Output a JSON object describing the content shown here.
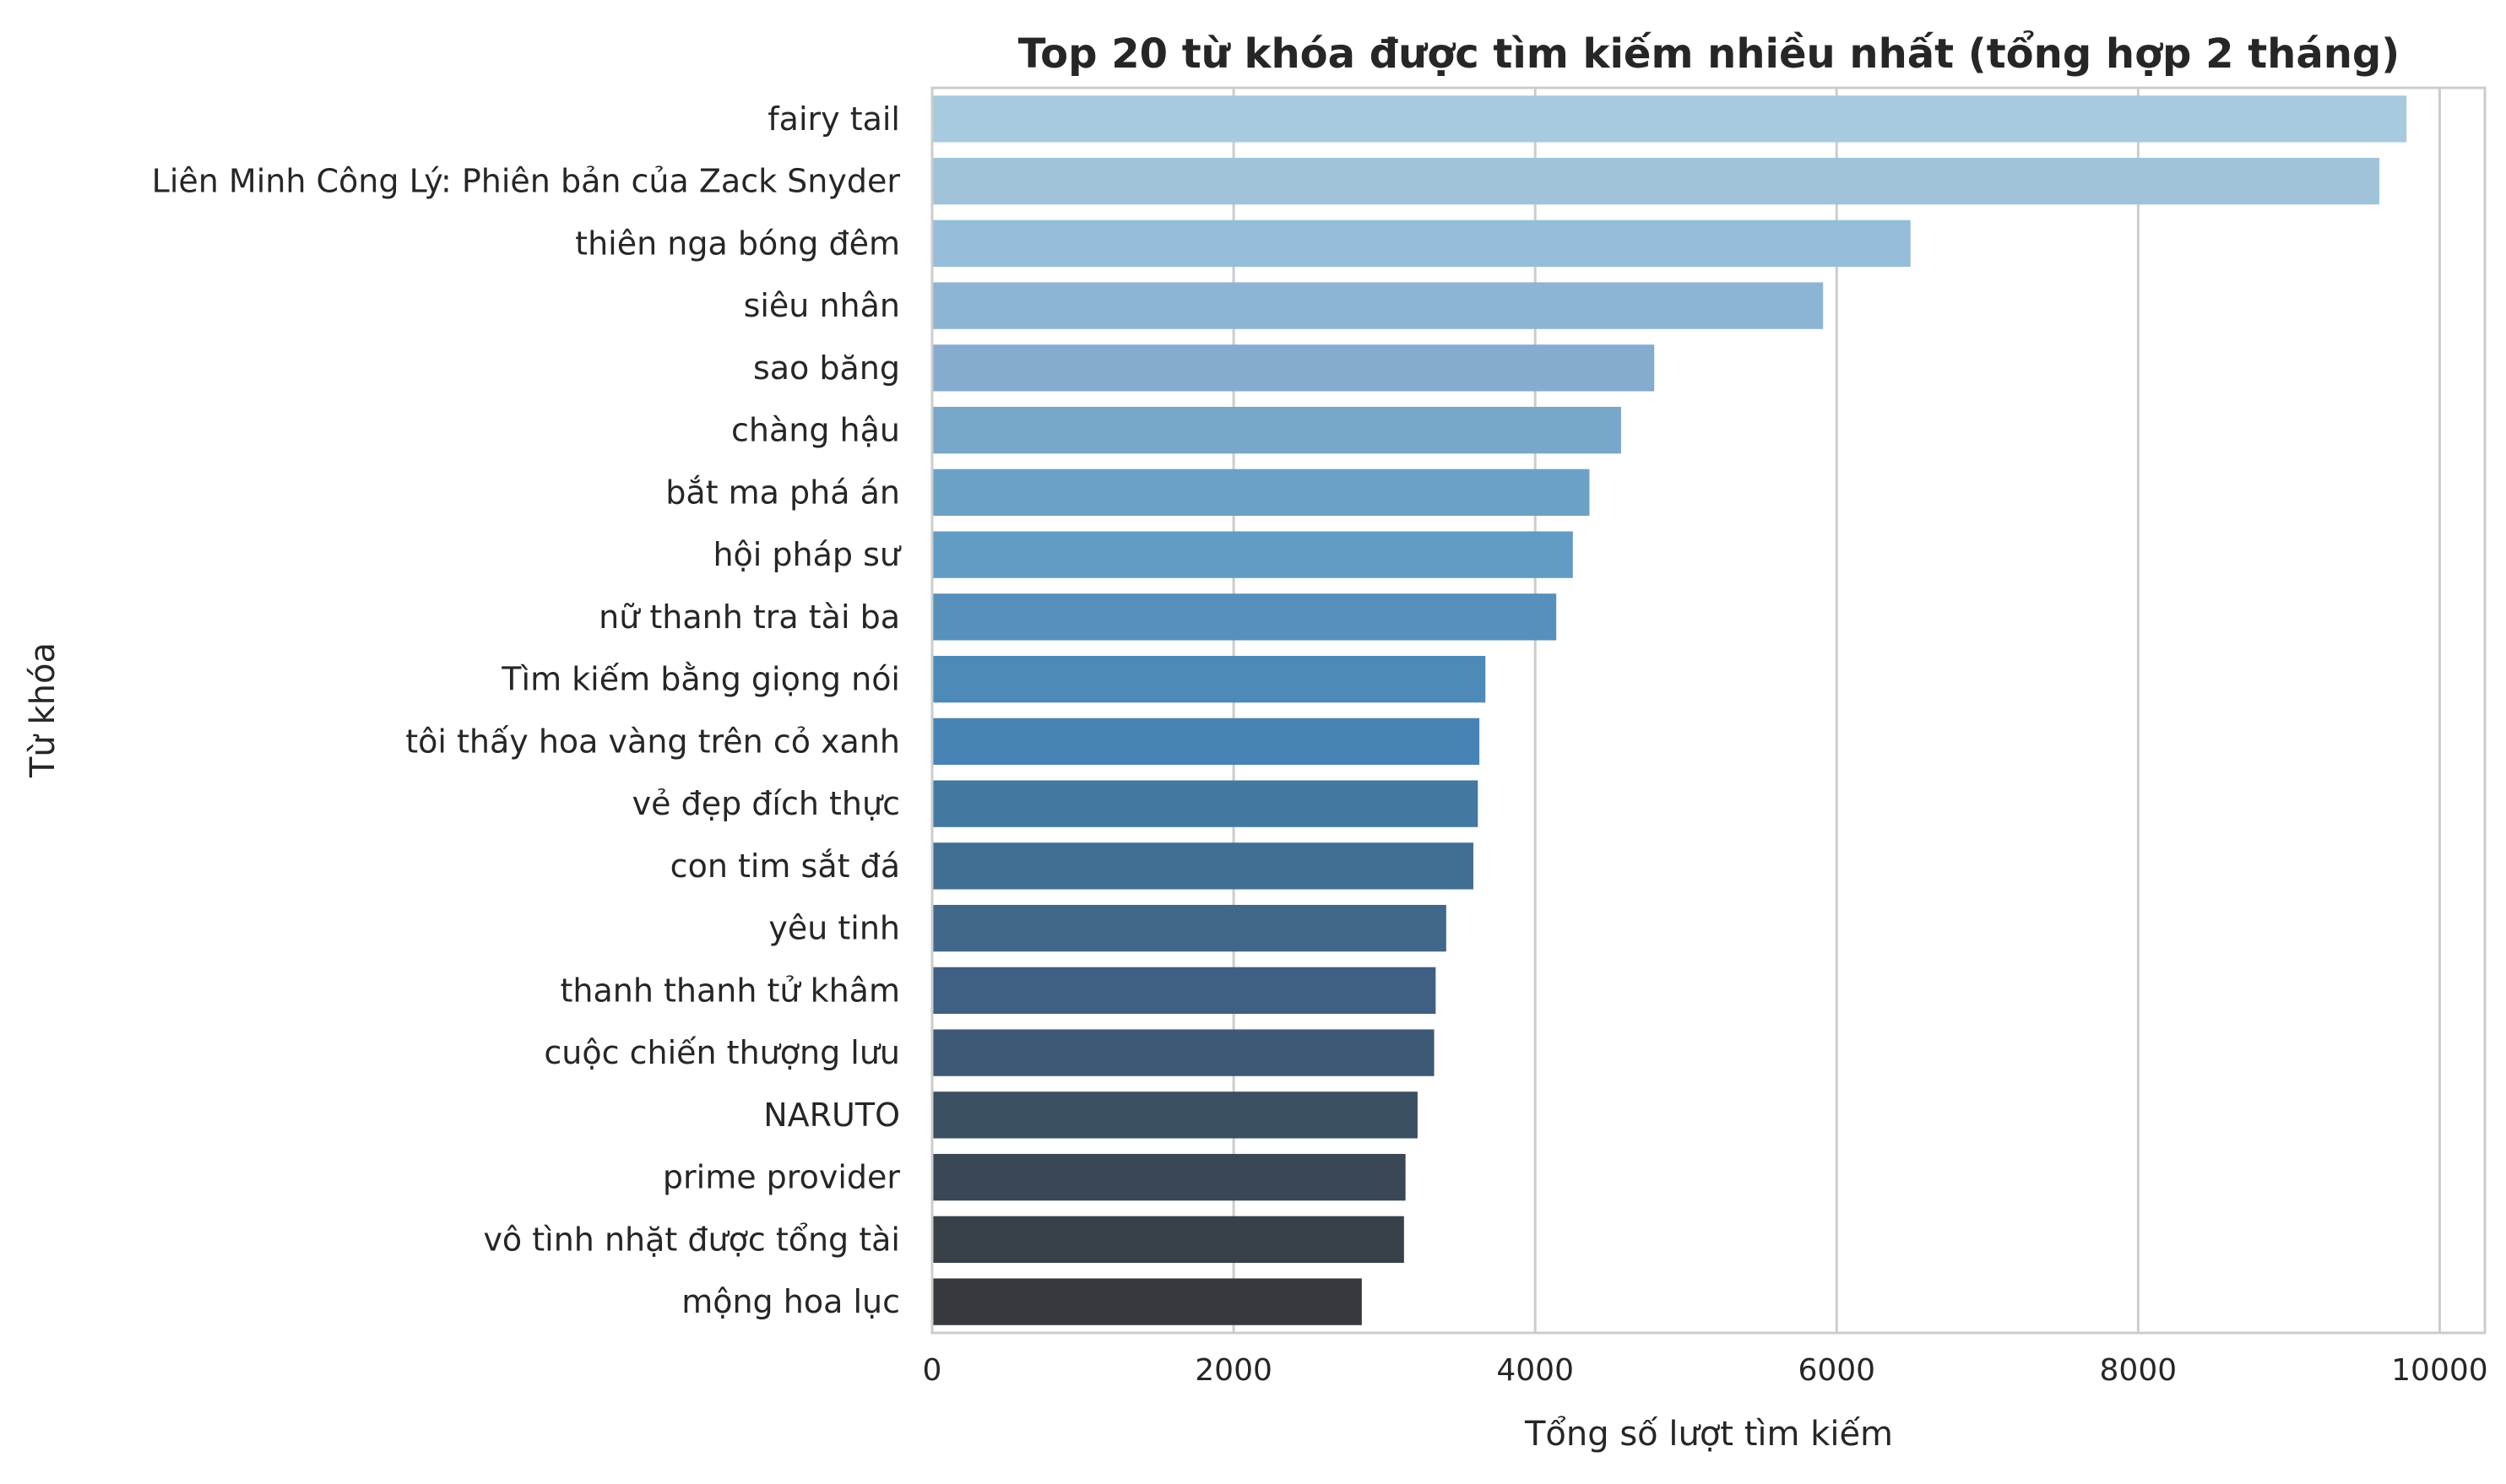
{
  "chart_data": {
    "type": "bar",
    "orientation": "horizontal",
    "title": "Top 20 từ khóa được tìm kiếm nhiều nhất (tổng hợp 2 tháng)",
    "xlabel": "Tổng số lượt tìm kiếm",
    "ylabel": "Từ khóa",
    "xlim": [
      0,
      10300
    ],
    "xticks": [
      0,
      2000,
      4000,
      6000,
      8000,
      10000
    ],
    "grid": true,
    "legend": "none",
    "palette": "Blues_d",
    "categories": [
      "fairy tail",
      "Liên Minh Công Lý: Phiên bản của Zack Snyder",
      "thiên nga bóng đêm",
      "siêu nhân",
      "sao băng",
      "chàng hậu",
      "bắt ma phá án",
      "hội pháp sư",
      "nữ thanh tra tài ba",
      "Tìm kiếm bằng giọng nói",
      "tôi thấy hoa vàng trên cỏ xanh",
      "vẻ đẹp đích thực",
      "con tim sắt đá",
      "yêu tinh",
      "thanh thanh tử khâm",
      "cuộc chiến thượng lưu",
      "NARUTO",
      "prime provider",
      "vô tình nhặt được tổng tài",
      "mộng hoa lục"
    ],
    "values": [
      9780,
      9600,
      6490,
      5910,
      4790,
      4570,
      4360,
      4250,
      4140,
      3670,
      3630,
      3620,
      3590,
      3410,
      3340,
      3330,
      3220,
      3140,
      3130,
      2850
    ],
    "colors": [
      "#a8cadf",
      "#a0c3da",
      "#95bdd9",
      "#8cb4d5",
      "#85abce",
      "#77a7c9",
      "#6ca1c6",
      "#629cc5",
      "#5690bb",
      "#4e8ab8",
      "#4784b5",
      "#4379a0",
      "#416f93",
      "#41678a",
      "#3f6083",
      "#3d5976",
      "#3b4f63",
      "#3a4856",
      "#384048",
      "#363a3e"
    ]
  }
}
